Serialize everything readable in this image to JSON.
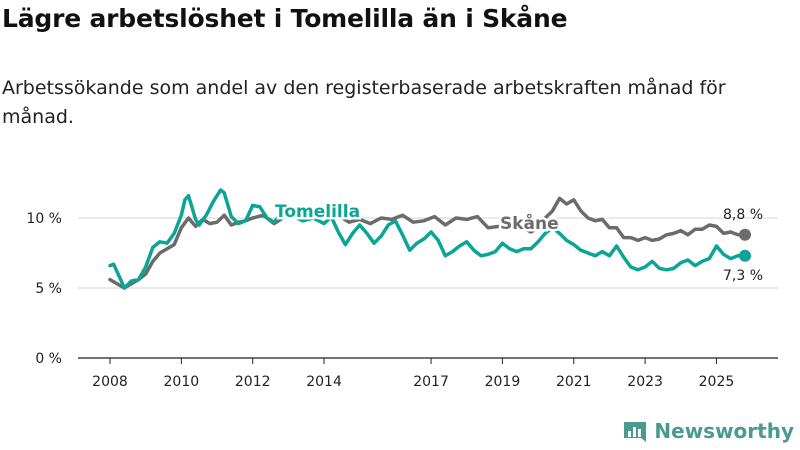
{
  "title": "Lägre arbetslöshet i Tomelilla än i Skåne",
  "subtitle": "Arbetssökande som andel av den registerbaserade arbetskraften månad för månad.",
  "brand": {
    "name": "Newsworthy",
    "color": "#4a9a8f"
  },
  "chart_data": {
    "type": "line",
    "title": "Lägre arbetslöshet i Tomelilla än i Skåne",
    "xlabel": "",
    "ylabel": "",
    "xlim": [
      2007.6,
      2026.9
    ],
    "ylim": [
      0,
      12
    ],
    "grid": true,
    "x_ticks": [
      2008,
      2010,
      2012,
      2014,
      2017,
      2019,
      2021,
      2023,
      2025
    ],
    "x_tick_labels": [
      "2008",
      "2010",
      "2012",
      "2014",
      "2017",
      "2019",
      "2021",
      "2023",
      "2025"
    ],
    "y_ticks": [
      0,
      5,
      10
    ],
    "y_tick_labels": [
      "0 %",
      "5 %",
      "10 %"
    ],
    "series": [
      {
        "name": "Skåne",
        "color": "#6b6b6b",
        "end_label": "8,8 %",
        "points": [
          [
            2008,
            5.6
          ],
          [
            2008.2,
            5.3
          ],
          [
            2008.4,
            5.0
          ],
          [
            2008.6,
            5.3
          ],
          [
            2008.8,
            5.6
          ],
          [
            2009,
            6.0
          ],
          [
            2009.2,
            6.9
          ],
          [
            2009.4,
            7.5
          ],
          [
            2009.6,
            7.8
          ],
          [
            2009.8,
            8.1
          ],
          [
            2010,
            9.3
          ],
          [
            2010.2,
            10.0
          ],
          [
            2010.4,
            9.4
          ],
          [
            2010.6,
            9.9
          ],
          [
            2010.8,
            9.6
          ],
          [
            2011,
            9.7
          ],
          [
            2011.2,
            10.2
          ],
          [
            2011.4,
            9.5
          ],
          [
            2011.6,
            9.7
          ],
          [
            2011.8,
            9.8
          ],
          [
            2012,
            10.0
          ],
          [
            2012.3,
            10.2
          ],
          [
            2012.6,
            9.6
          ],
          [
            2012.9,
            10.1
          ],
          [
            2013.2,
            10.4
          ],
          [
            2013.5,
            10.1
          ],
          [
            2013.8,
            10.3
          ],
          [
            2014.1,
            10.0
          ],
          [
            2014.4,
            10.2
          ],
          [
            2014.7,
            9.7
          ],
          [
            2015,
            9.9
          ],
          [
            2015.3,
            9.6
          ],
          [
            2015.6,
            10.0
          ],
          [
            2015.9,
            9.9
          ],
          [
            2016.2,
            10.2
          ],
          [
            2016.5,
            9.7
          ],
          [
            2016.8,
            9.8
          ],
          [
            2017.1,
            10.1
          ],
          [
            2017.4,
            9.5
          ],
          [
            2017.7,
            10.0
          ],
          [
            2018,
            9.9
          ],
          [
            2018.3,
            10.1
          ],
          [
            2018.6,
            9.3
          ],
          [
            2018.9,
            9.4
          ],
          [
            2019.2,
            9.2
          ],
          [
            2019.5,
            9.4
          ],
          [
            2019.8,
            9.0
          ],
          [
            2020,
            9.3
          ],
          [
            2020.2,
            10.0
          ],
          [
            2020.4,
            10.5
          ],
          [
            2020.6,
            11.4
          ],
          [
            2020.8,
            11.0
          ],
          [
            2021,
            11.3
          ],
          [
            2021.2,
            10.5
          ],
          [
            2021.4,
            10.0
          ],
          [
            2021.6,
            9.8
          ],
          [
            2021.8,
            9.9
          ],
          [
            2022,
            9.3
          ],
          [
            2022.2,
            9.3
          ],
          [
            2022.4,
            8.6
          ],
          [
            2022.6,
            8.6
          ],
          [
            2022.8,
            8.4
          ],
          [
            2023,
            8.6
          ],
          [
            2023.2,
            8.4
          ],
          [
            2023.4,
            8.5
          ],
          [
            2023.6,
            8.8
          ],
          [
            2023.8,
            8.9
          ],
          [
            2024,
            9.1
          ],
          [
            2024.2,
            8.8
          ],
          [
            2024.4,
            9.2
          ],
          [
            2024.6,
            9.2
          ],
          [
            2024.8,
            9.5
          ],
          [
            2025,
            9.4
          ],
          [
            2025.2,
            8.9
          ],
          [
            2025.4,
            9.0
          ],
          [
            2025.6,
            8.8
          ],
          [
            2025.8,
            8.8
          ]
        ]
      },
      {
        "name": "Tomelilla",
        "color": "#0aa595",
        "end_label": "7,3 %",
        "points": [
          [
            2008,
            6.6
          ],
          [
            2008.1,
            6.7
          ],
          [
            2008.3,
            5.6
          ],
          [
            2008.4,
            5.0
          ],
          [
            2008.6,
            5.5
          ],
          [
            2008.8,
            5.6
          ],
          [
            2009,
            6.5
          ],
          [
            2009.2,
            7.9
          ],
          [
            2009.4,
            8.3
          ],
          [
            2009.6,
            8.2
          ],
          [
            2009.8,
            8.9
          ],
          [
            2010,
            10.2
          ],
          [
            2010.1,
            11.3
          ],
          [
            2010.2,
            11.6
          ],
          [
            2010.4,
            9.9
          ],
          [
            2010.5,
            9.5
          ],
          [
            2010.7,
            10.2
          ],
          [
            2010.9,
            11.2
          ],
          [
            2011.1,
            12.0
          ],
          [
            2011.2,
            11.8
          ],
          [
            2011.4,
            10.1
          ],
          [
            2011.6,
            9.6
          ],
          [
            2011.8,
            9.8
          ],
          [
            2012,
            10.9
          ],
          [
            2012.2,
            10.8
          ],
          [
            2012.4,
            10.0
          ],
          [
            2012.6,
            9.7
          ],
          [
            2012.8,
            10.3
          ],
          [
            2013.1,
            10.2
          ],
          [
            2013.4,
            9.8
          ],
          [
            2013.7,
            10.0
          ],
          [
            2014,
            9.6
          ],
          [
            2014.2,
            10.1
          ],
          [
            2014.4,
            9.0
          ],
          [
            2014.6,
            8.1
          ],
          [
            2014.8,
            8.9
          ],
          [
            2015,
            9.5
          ],
          [
            2015.2,
            8.9
          ],
          [
            2015.4,
            8.2
          ],
          [
            2015.6,
            8.7
          ],
          [
            2015.8,
            9.5
          ],
          [
            2016,
            9.8
          ],
          [
            2016.2,
            8.8
          ],
          [
            2016.4,
            7.7
          ],
          [
            2016.6,
            8.2
          ],
          [
            2016.8,
            8.5
          ],
          [
            2017,
            9.0
          ],
          [
            2017.2,
            8.4
          ],
          [
            2017.4,
            7.3
          ],
          [
            2017.6,
            7.6
          ],
          [
            2017.8,
            8.0
          ],
          [
            2018,
            8.3
          ],
          [
            2018.2,
            7.7
          ],
          [
            2018.4,
            7.3
          ],
          [
            2018.6,
            7.4
          ],
          [
            2018.8,
            7.6
          ],
          [
            2019,
            8.2
          ],
          [
            2019.2,
            7.8
          ],
          [
            2019.4,
            7.6
          ],
          [
            2019.6,
            7.8
          ],
          [
            2019.8,
            7.8
          ],
          [
            2020,
            8.3
          ],
          [
            2020.2,
            8.9
          ],
          [
            2020.4,
            9.3
          ],
          [
            2020.6,
            8.9
          ],
          [
            2020.8,
            8.4
          ],
          [
            2021,
            8.1
          ],
          [
            2021.2,
            7.7
          ],
          [
            2021.4,
            7.5
          ],
          [
            2021.6,
            7.3
          ],
          [
            2021.8,
            7.6
          ],
          [
            2022,
            7.3
          ],
          [
            2022.2,
            8.0
          ],
          [
            2022.4,
            7.2
          ],
          [
            2022.6,
            6.5
          ],
          [
            2022.8,
            6.3
          ],
          [
            2023,
            6.5
          ],
          [
            2023.2,
            6.9
          ],
          [
            2023.4,
            6.4
          ],
          [
            2023.6,
            6.3
          ],
          [
            2023.8,
            6.4
          ],
          [
            2024,
            6.8
          ],
          [
            2024.2,
            7.0
          ],
          [
            2024.4,
            6.6
          ],
          [
            2024.6,
            6.9
          ],
          [
            2024.8,
            7.1
          ],
          [
            2025,
            8.0
          ],
          [
            2025.2,
            7.4
          ],
          [
            2025.4,
            7.1
          ],
          [
            2025.6,
            7.3
          ],
          [
            2025.8,
            7.3
          ]
        ]
      }
    ]
  }
}
